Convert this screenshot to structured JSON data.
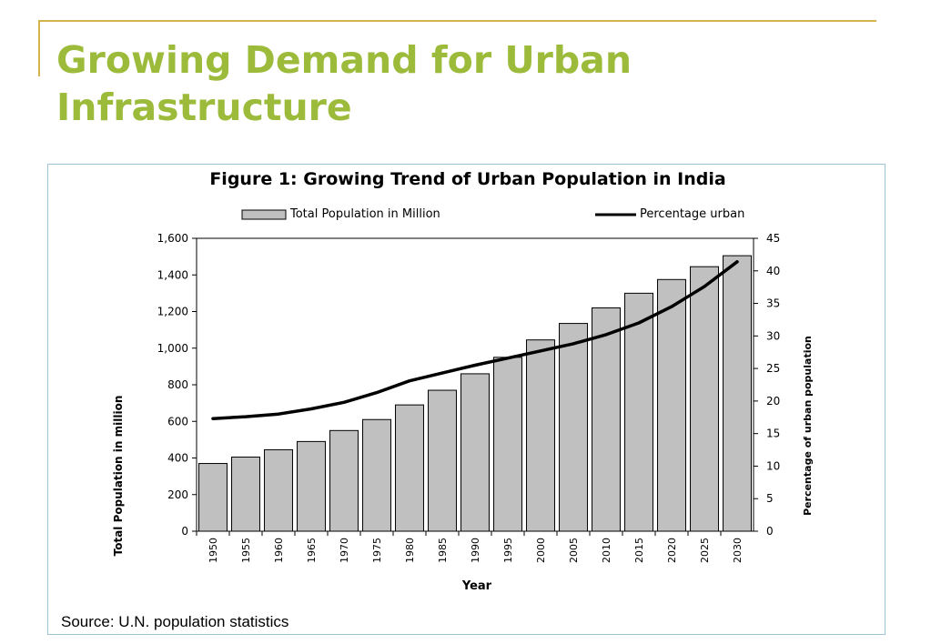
{
  "slide": {
    "title_line1": "Growing Demand for Urban",
    "title_line2": "Infrastructure",
    "accent_color": "#9cbb3a",
    "rule_color": "#d4b24c"
  },
  "chart_data": {
    "type": "bar",
    "title": "Figure 1: Growing Trend of Urban Population in India",
    "xlabel": "Year",
    "ylabel": "Total Population in million",
    "y2label": "Percentage of urban population",
    "categories": [
      "1950",
      "1955",
      "1960",
      "1965",
      "1970",
      "1975",
      "1980",
      "1985",
      "1990",
      "1995",
      "2000",
      "2005",
      "2010",
      "2015",
      "2020",
      "2025",
      "2030"
    ],
    "series": [
      {
        "name": "Total Population in Million",
        "type": "bar",
        "axis": "left",
        "color": "#c0c0c0",
        "values": [
          370,
          405,
          445,
          490,
          550,
          610,
          690,
          770,
          860,
          950,
          1045,
          1135,
          1220,
          1300,
          1375,
          1445,
          1505
        ]
      },
      {
        "name": "Percentage urban",
        "type": "line",
        "axis": "right",
        "color": "#000000",
        "values": [
          17.3,
          17.6,
          18.0,
          18.8,
          19.8,
          21.3,
          23.1,
          24.3,
          25.5,
          26.6,
          27.7,
          28.8,
          30.2,
          32.0,
          34.5,
          37.6,
          41.4
        ]
      }
    ],
    "ylim": [
      0,
      1600
    ],
    "yticks": [
      "0",
      "200",
      "400",
      "600",
      "800",
      "1,000",
      "1,200",
      "1,400",
      "1,600"
    ],
    "y2lim": [
      0,
      45
    ],
    "y2ticks": [
      "0",
      "5",
      "10",
      "15",
      "20",
      "25",
      "30",
      "35",
      "40",
      "45"
    ],
    "legend": "top",
    "grid": false,
    "source": "Source: U.N. population statistics"
  }
}
